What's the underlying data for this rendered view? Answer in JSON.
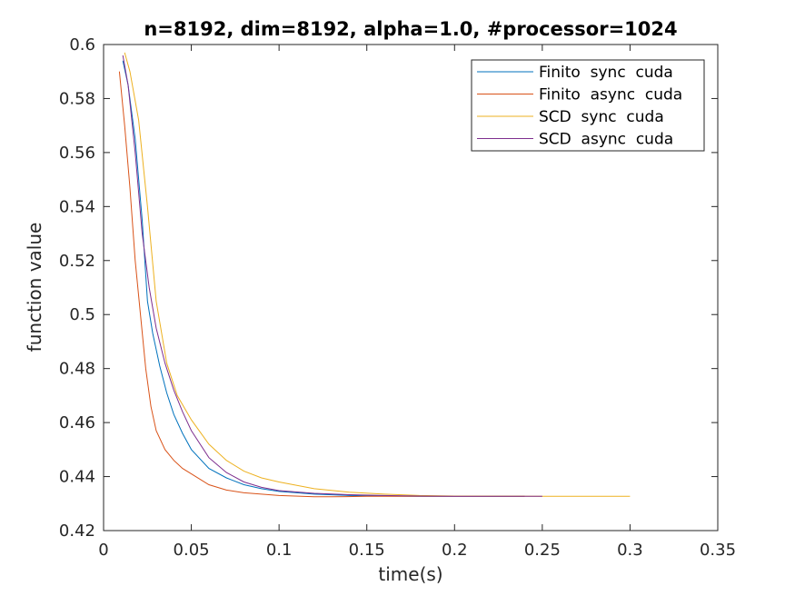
{
  "chart_data": {
    "type": "line",
    "title": "n=8192, dim=8192, alpha=1.0, #processor=1024",
    "xlabel": "time(s)",
    "ylabel": "function value",
    "xlim": [
      0,
      0.35
    ],
    "ylim": [
      0.42,
      0.6
    ],
    "xticks": [
      "0",
      "0.05",
      "0.1",
      "0.15",
      "0.2",
      "0.25",
      "0.3",
      "0.35"
    ],
    "xtick_values": [
      0,
      0.05,
      0.1,
      0.15,
      0.2,
      0.25,
      0.3,
      0.35
    ],
    "yticks": [
      "0.42",
      "0.44",
      "0.46",
      "0.48",
      "0.5",
      "0.52",
      "0.54",
      "0.56",
      "0.58",
      "0.6"
    ],
    "ytick_values": [
      0.42,
      0.44,
      0.46,
      0.48,
      0.5,
      0.52,
      0.54,
      0.56,
      0.58,
      0.6
    ],
    "grid": false,
    "legend_position": "top-right",
    "series": [
      {
        "name": "Finito  sync  cuda",
        "color": "#0072BD",
        "x": [
          0.011,
          0.014,
          0.018,
          0.022,
          0.025,
          0.028,
          0.032,
          0.036,
          0.04,
          0.045,
          0.05,
          0.06,
          0.07,
          0.08,
          0.09,
          0.1,
          0.12,
          0.14,
          0.16,
          0.18,
          0.2,
          0.22,
          0.24
        ],
        "y": [
          0.594,
          0.585,
          0.565,
          0.535,
          0.505,
          0.493,
          0.481,
          0.471,
          0.463,
          0.456,
          0.45,
          0.443,
          0.4395,
          0.437,
          0.4355,
          0.4345,
          0.4335,
          0.433,
          0.4328,
          0.4327,
          0.4327,
          0.4327,
          0.4327
        ]
      },
      {
        "name": "Finito  async  cuda",
        "color": "#D95319",
        "x": [
          0.009,
          0.012,
          0.015,
          0.018,
          0.021,
          0.024,
          0.027,
          0.03,
          0.035,
          0.04,
          0.045,
          0.05,
          0.06,
          0.07,
          0.08,
          0.1,
          0.12,
          0.13,
          0.15,
          0.2,
          0.24
        ],
        "y": [
          0.59,
          0.57,
          0.547,
          0.52,
          0.5,
          0.48,
          0.466,
          0.457,
          0.45,
          0.446,
          0.443,
          0.441,
          0.437,
          0.435,
          0.434,
          0.433,
          0.4325,
          0.4325,
          0.4327,
          0.4327,
          0.4327
        ]
      },
      {
        "name": "SCD  sync  cuda",
        "color": "#EDB120",
        "x": [
          0.012,
          0.015,
          0.02,
          0.025,
          0.03,
          0.036,
          0.042,
          0.05,
          0.06,
          0.07,
          0.08,
          0.09,
          0.1,
          0.12,
          0.14,
          0.16,
          0.18,
          0.2,
          0.25,
          0.3
        ],
        "y": [
          0.597,
          0.59,
          0.572,
          0.54,
          0.505,
          0.482,
          0.47,
          0.461,
          0.452,
          0.446,
          0.442,
          0.4395,
          0.438,
          0.4355,
          0.4342,
          0.4335,
          0.433,
          0.4328,
          0.4327,
          0.4327
        ]
      },
      {
        "name": "SCD  async  cuda",
        "color": "#7E2F8E",
        "x": [
          0.011,
          0.014,
          0.018,
          0.022,
          0.026,
          0.03,
          0.035,
          0.04,
          0.045,
          0.05,
          0.06,
          0.07,
          0.08,
          0.09,
          0.1,
          0.12,
          0.14,
          0.16,
          0.18,
          0.2,
          0.25
        ],
        "y": [
          0.596,
          0.585,
          0.56,
          0.53,
          0.51,
          0.495,
          0.482,
          0.472,
          0.464,
          0.457,
          0.447,
          0.4415,
          0.438,
          0.436,
          0.4348,
          0.4338,
          0.4333,
          0.433,
          0.4328,
          0.4327,
          0.4327
        ]
      }
    ]
  }
}
